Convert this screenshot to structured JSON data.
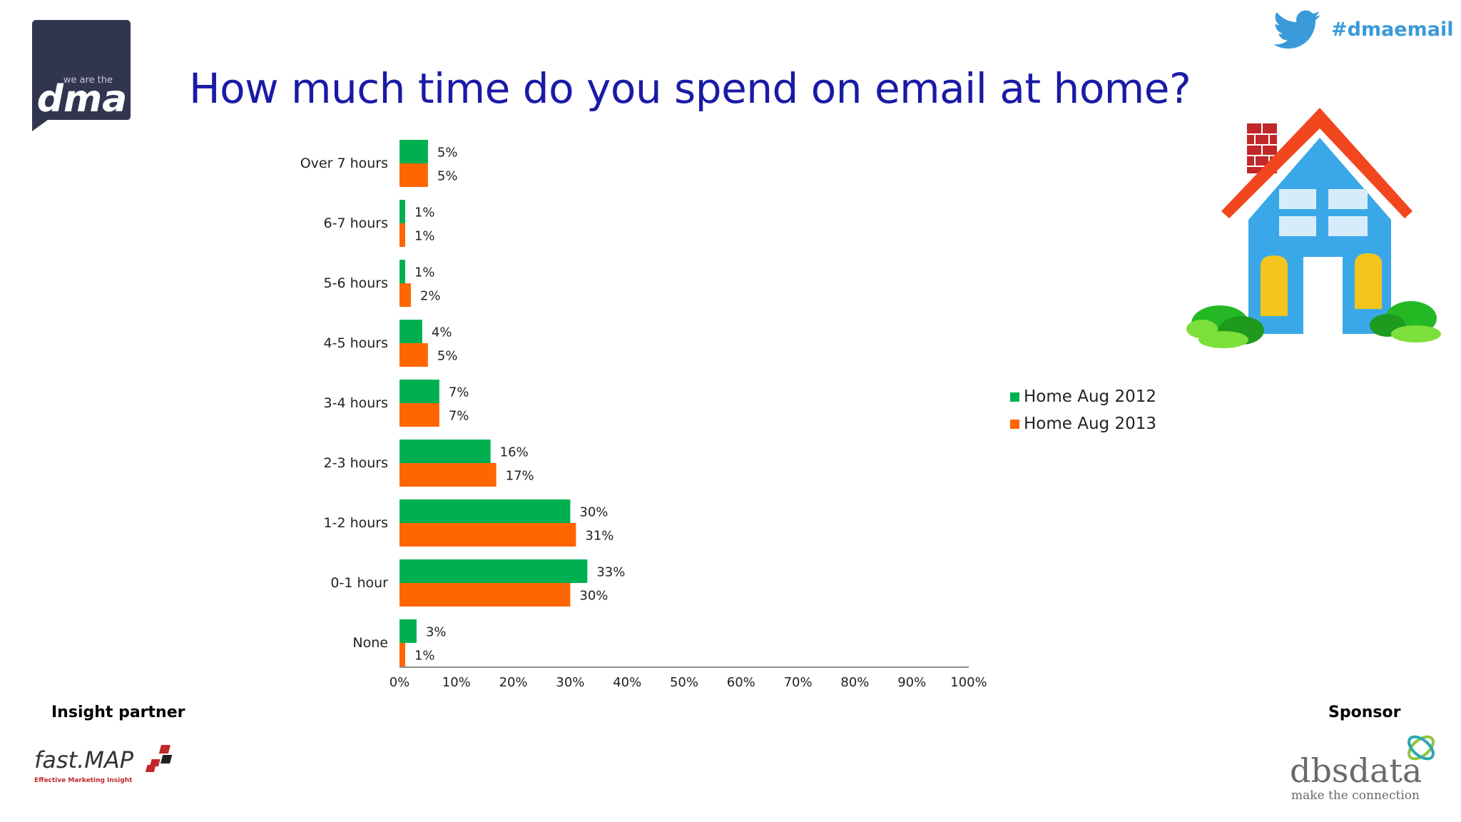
{
  "header": {
    "title": "How much time do you spend on email at home?",
    "hashtag": "#dmaemail",
    "dma_logo_text": "dma",
    "dma_logo_small": "we are the"
  },
  "chart_data": {
    "type": "bar",
    "orientation": "horizontal",
    "categories": [
      "Over 7 hours",
      "6-7 hours",
      "5-6 hours",
      "4-5 hours",
      "3-4 hours",
      "2-3 hours",
      "1-2 hours",
      "0-1 hour",
      "None"
    ],
    "series": [
      {
        "name": "Home Aug 2012",
        "color": "#00b050",
        "values": [
          5,
          1,
          1,
          4,
          7,
          16,
          30,
          33,
          3
        ],
        "labels": [
          "5%",
          "1%",
          "1%",
          "4%",
          "7%",
          "16%",
          "30%",
          "33%",
          "3%"
        ]
      },
      {
        "name": "Home Aug 2013",
        "color": "#ff6600",
        "values": [
          5,
          1,
          2,
          5,
          7,
          17,
          31,
          30,
          1
        ],
        "labels": [
          "5%",
          "1%",
          "2%",
          "5%",
          "7%",
          "17%",
          "31%",
          "30%",
          "1%"
        ]
      }
    ],
    "xlim": [
      0,
      100
    ],
    "x_ticks": [
      "0%",
      "10%",
      "20%",
      "30%",
      "40%",
      "50%",
      "60%",
      "70%",
      "80%",
      "90%",
      "100%"
    ],
    "grid": false,
    "legend_position": "right"
  },
  "footer": {
    "insight_partner_label": "Insight partner",
    "sponsor_label": "Sponsor",
    "fastmap_name": "fast.MAP",
    "fastmap_tagline": "Effective Marketing Insight",
    "dbs_name": "dbsdata",
    "dbs_tagline": "make the connection"
  },
  "colors": {
    "title": "#1a1aa6",
    "hashtag": "#3a9ad9",
    "green": "#00b050",
    "orange": "#ff6600"
  }
}
